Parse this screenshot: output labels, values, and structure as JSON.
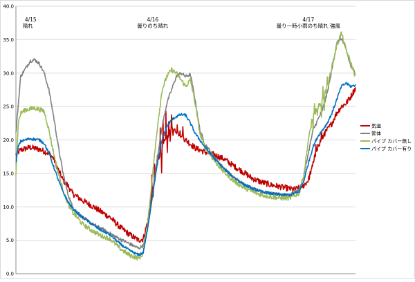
{
  "chart_data": {
    "type": "line",
    "ylim": [
      0,
      40
    ],
    "y_ticks": [
      "0.0",
      "5.0",
      "10.0",
      "15.0",
      "20.0",
      "25.0",
      "30.0",
      "35.0",
      "40.0"
    ],
    "grid": true,
    "legend_position": "right",
    "x_domain": [
      0,
      72
    ],
    "annotations": [
      {
        "date": "4/15",
        "weather": "晴れ",
        "x": 1
      },
      {
        "date": "4/16",
        "weather": "曇りのち晴れ",
        "x": 29
      },
      {
        "date": "4/17",
        "weather": "曇り一時小雨のち晴れ 強風",
        "x": 62
      }
    ],
    "series": [
      {
        "name": "気温",
        "color": "#c00000",
        "noise": 0.45,
        "x": [
          0,
          1,
          3,
          5,
          7,
          8,
          9,
          10,
          11,
          12,
          14,
          16,
          18,
          20,
          22,
          24,
          26,
          27,
          28,
          29,
          30,
          32,
          33,
          34,
          36,
          38,
          40,
          42,
          44,
          46,
          48,
          50,
          52,
          54,
          56,
          58,
          59,
          60,
          61,
          62,
          63,
          64,
          65,
          66,
          67,
          68,
          69,
          70,
          71,
          72
        ],
        "values": [
          17.8,
          18.5,
          18.9,
          18.6,
          18.0,
          17.2,
          15.5,
          14.0,
          13.2,
          12.0,
          11.0,
          10.2,
          9.3,
          8.4,
          7.0,
          5.9,
          5.0,
          5.2,
          8.0,
          12.5,
          17.0,
          20.5,
          21.5,
          21.3,
          20.0,
          18.8,
          18.2,
          17.8,
          17.2,
          16.2,
          15.3,
          14.3,
          13.7,
          13.3,
          13.0,
          12.7,
          12.6,
          12.8,
          13.2,
          14.0,
          16.5,
          19.0,
          20.5,
          21.5,
          22.5,
          24.0,
          25.0,
          25.5,
          26.5,
          27.8
        ],
        "spikes": [
          [
            29,
            16.5
          ],
          [
            30,
            18.0
          ],
          [
            31,
            23.5
          ],
          [
            32,
            25.0
          ],
          [
            33,
            24.5
          ],
          [
            34,
            22.8
          ],
          [
            35,
            22.5
          ],
          [
            63,
            17.0
          ],
          [
            64,
            19.5
          ],
          [
            65,
            21.5
          ]
        ]
      },
      {
        "name": "筐体",
        "color": "#7f7f7f",
        "noise": 0.25,
        "x": [
          0,
          1,
          3,
          4,
          5,
          6,
          7,
          8,
          9,
          10,
          11,
          12,
          13,
          14,
          16,
          18,
          20,
          22,
          24,
          26,
          27,
          28,
          29,
          30,
          31,
          32,
          33,
          34,
          35,
          36,
          37,
          38,
          39,
          40,
          42,
          44,
          46,
          48,
          50,
          52,
          54,
          56,
          58,
          60,
          61,
          62,
          63,
          64,
          65,
          66,
          67,
          68,
          69,
          70,
          71,
          72
        ],
        "values": [
          21.0,
          29.5,
          31.8,
          32.0,
          31.4,
          30.0,
          27.5,
          23.5,
          19.0,
          15.0,
          12.0,
          10.0,
          9.0,
          8.5,
          7.5,
          6.8,
          6.0,
          5.2,
          4.5,
          3.8,
          4.2,
          7.0,
          12.0,
          17.5,
          22.0,
          25.5,
          27.5,
          29.5,
          30.0,
          29.5,
          29.8,
          26.0,
          21.5,
          19.5,
          17.5,
          15.8,
          14.5,
          13.5,
          12.8,
          12.3,
          12.0,
          11.8,
          11.8,
          12.5,
          14.5,
          18.0,
          21.5,
          23.0,
          24.5,
          27.0,
          30.5,
          34.5,
          35.2,
          33.5,
          31.0,
          30.0
        ],
        "spikes": []
      },
      {
        "name": "パイプ カバー無し",
        "color": "#9bbb59",
        "noise": 0.35,
        "x": [
          0,
          0.5,
          1,
          2,
          4,
          6,
          7,
          8,
          9,
          10,
          11,
          12,
          13,
          14,
          16,
          18,
          20,
          22,
          24,
          26,
          27,
          28,
          29,
          30,
          31,
          32,
          33,
          34,
          35,
          36,
          37,
          38,
          39,
          40,
          42,
          44,
          46,
          48,
          50,
          52,
          54,
          56,
          58,
          60,
          61,
          62,
          63,
          64,
          65,
          66,
          67,
          68,
          69,
          70,
          71,
          72
        ],
        "values": [
          15.0,
          22.5,
          24.0,
          24.5,
          24.8,
          24.3,
          21.5,
          18.0,
          15.0,
          12.5,
          10.5,
          9.2,
          8.4,
          7.5,
          6.5,
          5.7,
          5.2,
          3.8,
          2.8,
          2.3,
          3.0,
          8.0,
          15.0,
          22.0,
          27.5,
          29.5,
          30.5,
          30.0,
          29.0,
          28.0,
          29.0,
          25.5,
          21.0,
          19.0,
          17.0,
          15.3,
          14.0,
          13.0,
          12.3,
          11.8,
          11.5,
          11.3,
          11.3,
          12.0,
          14.5,
          20.0,
          23.5,
          24.5,
          26.0,
          28.0,
          31.0,
          34.0,
          36.0,
          33.5,
          31.5,
          29.5
        ],
        "spikes": [
          [
            63,
            21.0
          ],
          [
            64,
            25.5
          ],
          [
            65,
            22.5
          ],
          [
            66,
            29.5
          ]
        ]
      },
      {
        "name": "パイプ カバー有り",
        "color": "#0070c0",
        "noise": 0.2,
        "x": [
          0,
          0.5,
          1,
          3,
          5,
          6,
          7,
          8,
          9,
          10,
          11,
          12,
          14,
          16,
          18,
          20,
          22,
          24,
          26,
          27,
          28,
          29,
          30,
          31,
          32,
          33,
          34,
          35,
          36,
          37,
          38,
          40,
          42,
          44,
          46,
          48,
          50,
          52,
          54,
          56,
          58,
          60,
          61,
          62,
          63,
          64,
          65,
          66,
          67,
          68,
          69,
          70,
          71,
          72
        ],
        "values": [
          16.5,
          19.0,
          19.8,
          20.2,
          20.0,
          19.5,
          18.0,
          16.0,
          14.0,
          12.2,
          10.8,
          9.8,
          8.5,
          7.5,
          6.5,
          5.8,
          4.5,
          3.5,
          2.8,
          3.2,
          7.0,
          12.0,
          16.5,
          20.0,
          22.0,
          23.0,
          23.5,
          23.8,
          23.7,
          22.5,
          21.0,
          19.0,
          17.3,
          15.8,
          14.5,
          13.5,
          12.8,
          12.3,
          12.0,
          11.8,
          11.8,
          12.2,
          13.8,
          16.5,
          19.0,
          20.5,
          21.5,
          22.5,
          24.0,
          26.0,
          28.0,
          28.5,
          28.0,
          28.2
        ],
        "spikes": []
      }
    ]
  }
}
